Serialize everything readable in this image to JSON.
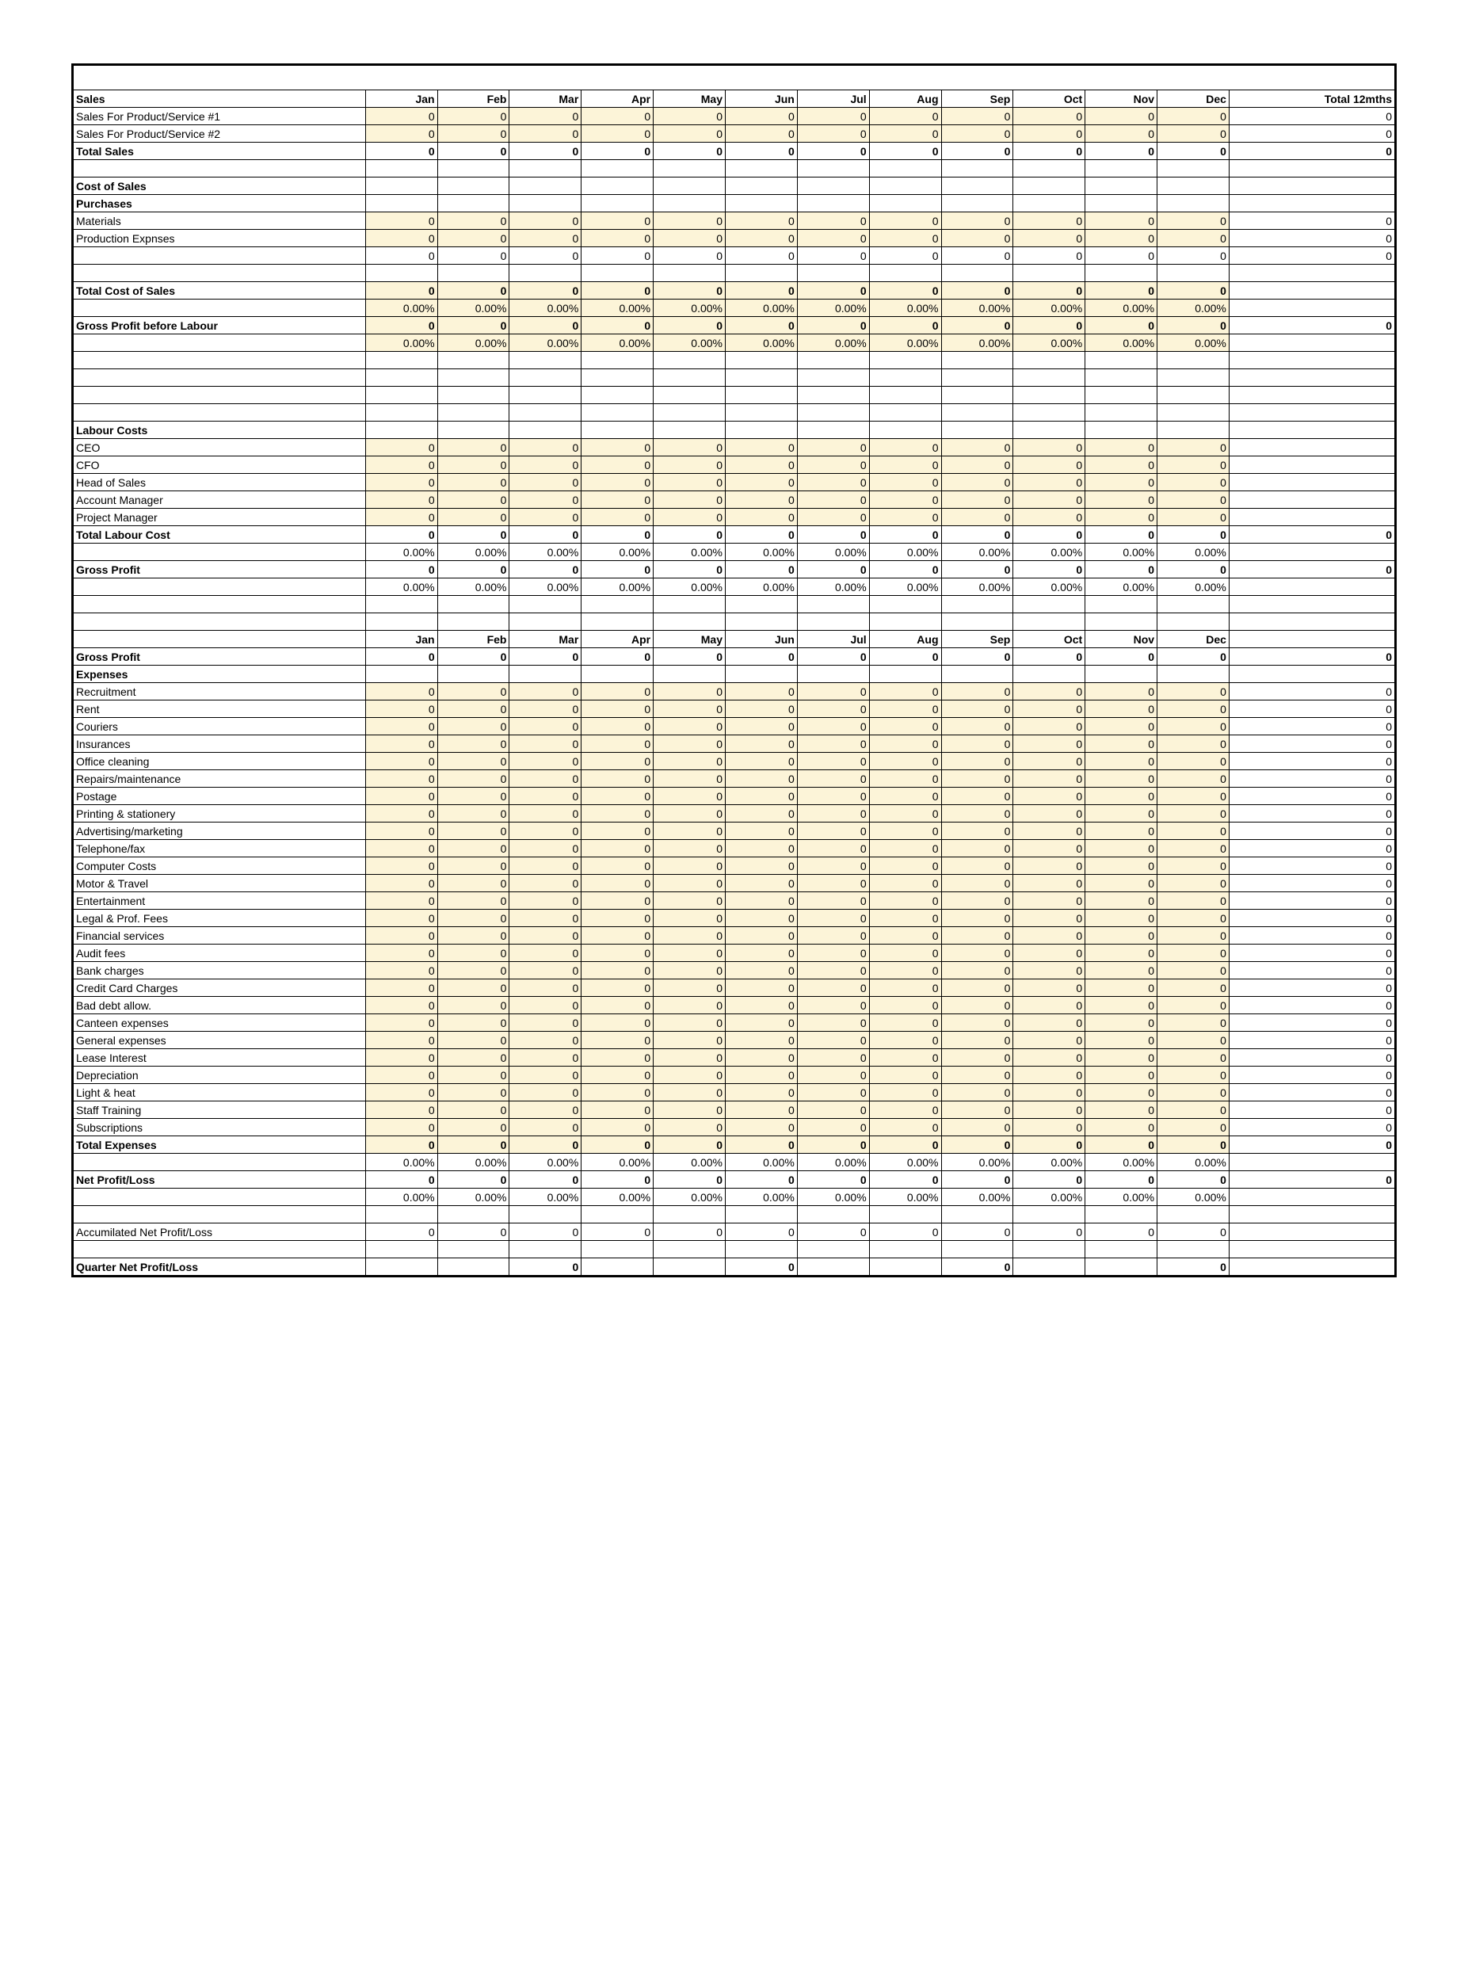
{
  "months": [
    "Jan",
    "Feb",
    "Mar",
    "Apr",
    "May",
    "Jun",
    "Jul",
    "Aug",
    "Sep",
    "Oct",
    "Nov",
    "Dec"
  ],
  "totalLabel": "Total 12mths",
  "zero": "0",
  "pct": "0.00%",
  "colors": {
    "shaded": "#fcf4d8",
    "border": "#000000",
    "background": "#ffffff"
  },
  "rows": [
    {
      "type": "spacer"
    },
    {
      "type": "header",
      "label": "Sales",
      "months": true,
      "total": true,
      "bold": true
    },
    {
      "type": "data",
      "label": "Sales For Product/Service #1",
      "shaded": true,
      "total": true
    },
    {
      "type": "data",
      "label": "Sales For Product/Service #2",
      "shaded": true,
      "total": true
    },
    {
      "type": "data",
      "label": "Total Sales",
      "bold": true,
      "total": true
    },
    {
      "type": "blank"
    },
    {
      "type": "section",
      "label": "Cost of Sales",
      "bold": true
    },
    {
      "type": "section",
      "label": "Purchases",
      "bold": true
    },
    {
      "type": "data",
      "label": "Materials",
      "shaded": true,
      "total": true
    },
    {
      "type": "data",
      "label": "Production Expnses",
      "shaded": true,
      "total": true
    },
    {
      "type": "data",
      "label": "",
      "total": true
    },
    {
      "type": "blank"
    },
    {
      "type": "data",
      "label": "Total Cost of Sales",
      "bold": true,
      "shaded": true
    },
    {
      "type": "pct",
      "shaded": true
    },
    {
      "type": "data",
      "label": "Gross Profit before Labour",
      "bold": true,
      "shaded": true,
      "total": true
    },
    {
      "type": "pct",
      "shaded": true
    },
    {
      "type": "blank"
    },
    {
      "type": "blank"
    },
    {
      "type": "blank"
    },
    {
      "type": "blank"
    },
    {
      "type": "section",
      "label": "Labour Costs",
      "bold": true
    },
    {
      "type": "data",
      "label": "CEO",
      "shaded": true
    },
    {
      "type": "data",
      "label": "CFO",
      "shaded": true
    },
    {
      "type": "data",
      "label": "Head of Sales",
      "shaded": true
    },
    {
      "type": "data",
      "label": "Account Manager",
      "shaded": true
    },
    {
      "type": "data",
      "label": "Project Manager",
      "shaded": true
    },
    {
      "type": "data",
      "label": "Total Labour Cost",
      "bold": true,
      "total": true
    },
    {
      "type": "pct"
    },
    {
      "type": "data",
      "label": "Gross Profit",
      "bold": true,
      "total": true
    },
    {
      "type": "pct"
    },
    {
      "type": "blank"
    },
    {
      "type": "blank"
    },
    {
      "type": "header",
      "label": "",
      "months": true,
      "bold": true
    },
    {
      "type": "data",
      "label": "Gross Profit",
      "bold": true,
      "total": true
    },
    {
      "type": "section",
      "label": "Expenses",
      "bold": true
    },
    {
      "type": "data",
      "label": "Recruitment",
      "shaded": true,
      "total": true
    },
    {
      "type": "data",
      "label": "Rent",
      "shaded": true,
      "total": true
    },
    {
      "type": "data",
      "label": "Couriers",
      "shaded": true,
      "total": true
    },
    {
      "type": "data",
      "label": "Insurances",
      "shaded": true,
      "total": true
    },
    {
      "type": "data",
      "label": "Office cleaning",
      "shaded": true,
      "total": true
    },
    {
      "type": "data",
      "label": "Repairs/maintenance",
      "shaded": true,
      "total": true
    },
    {
      "type": "data",
      "label": "Postage",
      "shaded": true,
      "total": true
    },
    {
      "type": "data",
      "label": "Printing & stationery",
      "shaded": true,
      "total": true
    },
    {
      "type": "data",
      "label": "Advertising/marketing",
      "shaded": true,
      "total": true
    },
    {
      "type": "data",
      "label": "Telephone/fax",
      "shaded": true,
      "total": true
    },
    {
      "type": "data",
      "label": "Computer Costs",
      "shaded": true,
      "total": true
    },
    {
      "type": "data",
      "label": "Motor & Travel",
      "shaded": true,
      "total": true
    },
    {
      "type": "data",
      "label": "Entertainment",
      "shaded": true,
      "total": true
    },
    {
      "type": "data",
      "label": "Legal & Prof. Fees",
      "shaded": true,
      "total": true
    },
    {
      "type": "data",
      "label": "Financial services",
      "shaded": true,
      "total": true
    },
    {
      "type": "data",
      "label": "Audit fees",
      "shaded": true,
      "total": true
    },
    {
      "type": "data",
      "label": "Bank charges",
      "shaded": true,
      "total": true
    },
    {
      "type": "data",
      "label": "Credit Card Charges",
      "shaded": true,
      "total": true
    },
    {
      "type": "data",
      "label": "Bad debt allow.",
      "shaded": true,
      "total": true
    },
    {
      "type": "data",
      "label": "Canteen expenses",
      "shaded": true,
      "total": true
    },
    {
      "type": "data",
      "label": "General expenses",
      "shaded": true,
      "total": true
    },
    {
      "type": "data",
      "label": "Lease Interest",
      "shaded": true,
      "total": true
    },
    {
      "type": "data",
      "label": "Depreciation",
      "shaded": true,
      "total": true
    },
    {
      "type": "data",
      "label": "Light & heat",
      "shaded": true,
      "total": true
    },
    {
      "type": "data",
      "label": "Staff Training",
      "shaded": true,
      "total": true
    },
    {
      "type": "data",
      "label": "Subscriptions",
      "shaded": true,
      "total": true
    },
    {
      "type": "data",
      "label": "Total Expenses",
      "bold": true,
      "shaded": true,
      "total": true
    },
    {
      "type": "pct"
    },
    {
      "type": "data",
      "label": "Net Profit/Loss",
      "bold": true,
      "total": true
    },
    {
      "type": "pct"
    },
    {
      "type": "blank"
    },
    {
      "type": "data",
      "label": "Accumilated Net Profit/Loss"
    },
    {
      "type": "blank"
    },
    {
      "type": "quarter",
      "label": "Quarter Net Profit/Loss",
      "bold": true
    }
  ]
}
